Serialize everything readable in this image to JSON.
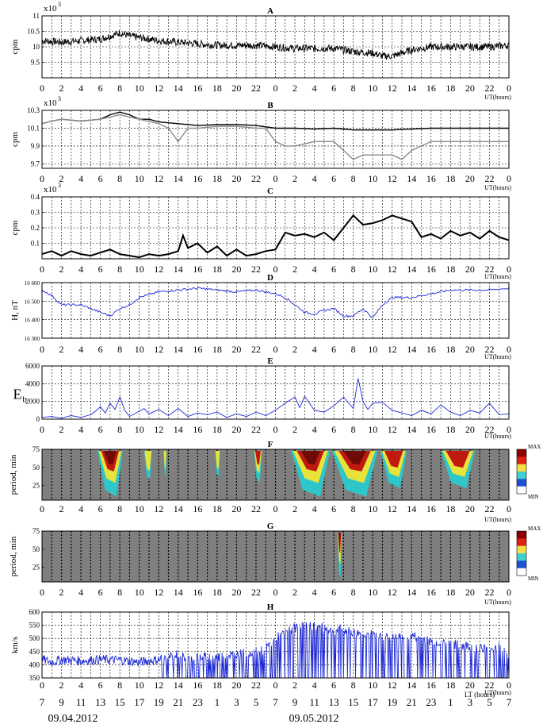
{
  "x_ticks": [
    "0",
    "2",
    "4",
    "6",
    "8",
    "10",
    "12",
    "14",
    "16",
    "18",
    "20",
    "22",
    "0",
    "2",
    "4",
    "6",
    "8",
    "10",
    "12",
    "14",
    "16",
    "18",
    "20",
    "22",
    "0"
  ],
  "ut_label": "UT(hours)",
  "lt_label": "LT (hours)",
  "lt_ticks": [
    "7",
    "9",
    "11",
    "13",
    "15",
    "17",
    "19",
    "21",
    "23",
    "1",
    "3",
    "5",
    "7",
    "9",
    "11",
    "13",
    "15",
    "17",
    "19",
    "21",
    "23",
    "1",
    "3",
    "5",
    "7"
  ],
  "dates": [
    "09.04.2012",
    "09.05.2012"
  ],
  "colorbar": {
    "max": "MAX",
    "min": "MIN"
  },
  "chart_data": [
    {
      "id": "A",
      "type": "line",
      "title": "A",
      "ylabel": "cpm",
      "exponent": "x10",
      "exponent_power": "3",
      "ylim": [
        9.0,
        11.0
      ],
      "yticks": [
        "9.5",
        "10",
        "10.5",
        "11"
      ],
      "x_range_hours": [
        0,
        48
      ],
      "series": [
        {
          "color": "#000000",
          "x": [
            0,
            2,
            4,
            6,
            7,
            8,
            9,
            10,
            12,
            14,
            16,
            18,
            20,
            22,
            24,
            26,
            28,
            30,
            32,
            34,
            35,
            36,
            37,
            38,
            40,
            42,
            44,
            46,
            48
          ],
          "y": [
            10.2,
            10.15,
            10.2,
            10.25,
            10.35,
            10.45,
            10.35,
            10.3,
            10.2,
            10.15,
            10.1,
            10.05,
            10.05,
            10.05,
            10.0,
            9.95,
            9.95,
            9.95,
            9.85,
            9.8,
            9.7,
            9.7,
            9.8,
            9.9,
            10.0,
            10.0,
            10.0,
            10.0,
            10.05
          ]
        }
      ]
    },
    {
      "id": "B",
      "type": "line",
      "title": "B",
      "ylabel": "cpm",
      "exponent": "x10",
      "exponent_power": "3",
      "ylim": [
        9.65,
        10.3
      ],
      "yticks": [
        "9.7",
        "9.9",
        "10.1",
        "10.3"
      ],
      "x_range_hours": [
        0,
        48
      ],
      "series": [
        {
          "color": "#000000",
          "x": [
            0,
            1,
            2,
            4,
            6,
            7,
            8,
            9,
            10,
            11,
            12,
            14,
            16,
            18,
            20,
            22,
            24,
            26,
            28,
            30,
            32,
            34,
            36,
            38,
            40,
            42,
            44,
            46,
            48
          ],
          "y": [
            10.15,
            10.18,
            10.2,
            10.18,
            10.2,
            10.25,
            10.28,
            10.25,
            10.2,
            10.2,
            10.17,
            10.15,
            10.13,
            10.14,
            10.14,
            10.13,
            10.1,
            10.1,
            10.09,
            10.1,
            10.08,
            10.08,
            10.08,
            10.09,
            10.1,
            10.1,
            10.1,
            10.1,
            10.1
          ]
        },
        {
          "color": "#8c8c8c",
          "x": [
            0,
            1,
            2,
            4,
            6,
            8,
            10,
            12,
            13,
            14,
            15,
            16,
            18,
            20,
            22,
            23,
            24,
            25,
            26,
            28,
            30,
            31,
            32,
            33,
            34,
            36,
            37,
            38,
            40,
            42,
            44,
            46,
            48
          ],
          "y": [
            10.15,
            10.18,
            10.2,
            10.18,
            10.2,
            10.25,
            10.2,
            10.15,
            10.1,
            9.95,
            10.1,
            10.1,
            10.12,
            10.12,
            10.1,
            10.1,
            9.95,
            9.9,
            9.9,
            9.95,
            9.95,
            9.85,
            9.75,
            9.8,
            9.8,
            9.8,
            9.75,
            9.85,
            9.95,
            9.95,
            9.95,
            9.95,
            9.95
          ]
        }
      ]
    },
    {
      "id": "C",
      "type": "line",
      "title": "C",
      "ylabel": "cpm",
      "exponent": "x10",
      "exponent_power": "3",
      "ylim": [
        0.0,
        0.4
      ],
      "yticks": [
        "0.1",
        "0.2",
        "0.3",
        "0.4"
      ],
      "x_range_hours": [
        0,
        48
      ],
      "series": [
        {
          "color": "#000000",
          "x": [
            0,
            1,
            2,
            3,
            4,
            5,
            6,
            7,
            8,
            9,
            10,
            11,
            12,
            13,
            14,
            14.5,
            15,
            16,
            17,
            18,
            19,
            20,
            21,
            22,
            23,
            24,
            25,
            26,
            27,
            28,
            29,
            30,
            31,
            32,
            33,
            34,
            35,
            36,
            37,
            38,
            39,
            40,
            41,
            42,
            43,
            44,
            45,
            46,
            47,
            48
          ],
          "y": [
            0.03,
            0.05,
            0.02,
            0.05,
            0.03,
            0.02,
            0.04,
            0.06,
            0.03,
            0.02,
            0.01,
            0.03,
            0.02,
            0.03,
            0.05,
            0.15,
            0.07,
            0.1,
            0.04,
            0.08,
            0.02,
            0.06,
            0.02,
            0.03,
            0.05,
            0.06,
            0.17,
            0.15,
            0.16,
            0.14,
            0.17,
            0.12,
            0.2,
            0.28,
            0.22,
            0.23,
            0.25,
            0.28,
            0.26,
            0.24,
            0.14,
            0.16,
            0.13,
            0.18,
            0.15,
            0.17,
            0.13,
            0.18,
            0.14,
            0.12
          ]
        }
      ]
    },
    {
      "id": "D",
      "type": "line",
      "title": "D",
      "ylabel": "H, nT",
      "ylim": [
        16300,
        16600
      ],
      "yticks": [
        "16 300",
        "16 400",
        "16 500",
        "16 600"
      ],
      "x_range_hours": [
        0,
        48
      ],
      "series": [
        {
          "color": "#1f2bd6",
          "x": [
            0,
            1,
            2,
            4,
            5,
            6,
            7,
            8,
            9,
            10,
            12,
            14,
            16,
            18,
            20,
            22,
            23,
            24,
            25,
            26,
            27,
            28,
            29,
            30,
            31,
            32,
            33,
            34,
            35,
            36,
            38,
            40,
            42,
            44,
            46,
            48
          ],
          "y": [
            16560,
            16530,
            16480,
            16480,
            16460,
            16440,
            16420,
            16460,
            16480,
            16520,
            16550,
            16560,
            16570,
            16560,
            16550,
            16560,
            16550,
            16540,
            16520,
            16480,
            16440,
            16430,
            16450,
            16460,
            16420,
            16420,
            16460,
            16410,
            16480,
            16520,
            16520,
            16540,
            16560,
            16560,
            16560,
            16570
          ]
        }
      ]
    },
    {
      "id": "E",
      "type": "line",
      "title": "E",
      "ylabel": "E",
      "ylabel_subscript": "b",
      "ylim": [
        0,
        6000
      ],
      "yticks": [
        "0",
        "2000",
        "4000",
        "6000"
      ],
      "x_range_hours": [
        0,
        48
      ],
      "series": [
        {
          "color": "#1f2bd6",
          "x": [
            0,
            1,
            2,
            3,
            4,
            5,
            5.5,
            6,
            6.5,
            7,
            7.5,
            8,
            8.5,
            9,
            10,
            10.5,
            11,
            12,
            13,
            14,
            15,
            16,
            17,
            18,
            19,
            20,
            21,
            22,
            23,
            24,
            25,
            26,
            26.5,
            27,
            28,
            29,
            30,
            31,
            32,
            32.5,
            33,
            33.5,
            34,
            35,
            36,
            37,
            38,
            39,
            40,
            41,
            42,
            43,
            44,
            45,
            46,
            47,
            48
          ],
          "y": [
            200,
            300,
            100,
            400,
            200,
            500,
            900,
            1400,
            700,
            1800,
            1100,
            2500,
            1000,
            300,
            900,
            1200,
            600,
            1100,
            400,
            1200,
            300,
            700,
            500,
            800,
            200,
            600,
            300,
            800,
            400,
            1000,
            1800,
            2500,
            1300,
            2600,
            1000,
            800,
            1500,
            2500,
            1200,
            4600,
            2000,
            1100,
            1800,
            1900,
            1000,
            700,
            400,
            1000,
            600,
            1600,
            800,
            400,
            1000,
            700,
            1800,
            500,
            600
          ]
        }
      ]
    },
    {
      "id": "F",
      "type": "heatmap",
      "title": "F",
      "ylabel": "period, min",
      "ylim": [
        5,
        75
      ],
      "yticks": [
        "25",
        "50",
        "75"
      ],
      "x_range_hours": [
        0,
        48
      ],
      "background": "#7f7f7f",
      "blobs": [
        {
          "x": [
            5.7,
            8.3
          ],
          "intensity": 1.0
        },
        {
          "x": [
            10.5,
            11.3
          ],
          "intensity": 0.4
        },
        {
          "x": [
            12.5,
            12.8
          ],
          "intensity": 0.3
        },
        {
          "x": [
            17.8,
            18.3
          ],
          "intensity": 0.3
        },
        {
          "x": [
            21.8,
            22.6
          ],
          "intensity": 0.5
        },
        {
          "x": [
            25.6,
            29.6
          ],
          "intensity": 1.0
        },
        {
          "x": [
            29.8,
            34.5
          ],
          "intensity": 1.0
        },
        {
          "x": [
            34.8,
            37.5
          ],
          "intensity": 0.7
        },
        {
          "x": [
            41.0,
            44.5
          ],
          "intensity": 0.7
        }
      ]
    },
    {
      "id": "G",
      "type": "heatmap",
      "title": "G",
      "ylabel": "period, min",
      "ylim": [
        5,
        75
      ],
      "yticks": [
        "25",
        "50",
        "75"
      ],
      "x_range_hours": [
        0,
        48
      ],
      "background": "#7f7f7f",
      "blobs": [
        {
          "x": [
            30.4,
            30.8
          ],
          "intensity": 1.0
        }
      ]
    },
    {
      "id": "H",
      "type": "line",
      "title": "H",
      "ylabel": "km/s",
      "ylim": [
        350,
        600
      ],
      "yticks": [
        "350",
        "400",
        "450",
        "500",
        "550",
        "600"
      ],
      "x_range_hours": [
        0,
        48
      ],
      "series": [
        {
          "color": "#1f2bd6",
          "x": [
            0,
            1,
            2,
            4,
            6,
            8,
            10,
            12,
            13,
            14,
            15,
            16,
            18,
            20,
            22,
            23,
            24,
            25,
            26,
            27,
            28,
            29,
            30,
            31,
            32,
            33,
            34,
            35,
            36,
            38,
            40,
            42,
            44,
            46,
            47,
            48
          ],
          "y": [
            420,
            410,
            420,
            415,
            420,
            418,
            410,
            420,
            430,
            440,
            420,
            430,
            430,
            440,
            450,
            460,
            500,
            520,
            540,
            550,
            545,
            540,
            530,
            535,
            520,
            520,
            515,
            510,
            500,
            510,
            490,
            480,
            470,
            460,
            470,
            440
          ]
        }
      ]
    }
  ]
}
